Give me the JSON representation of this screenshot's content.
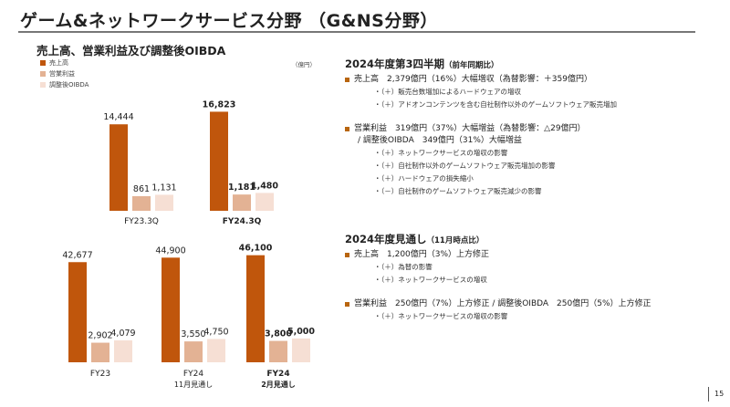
{
  "title": "ゲーム&ネットワークサービス分野 （G&NS分野）",
  "subtitle": "売上高、営業利益及び調整後OIBDA",
  "unit": "（億円）",
  "legend": [
    "売上高",
    "営業利益",
    "調整後OIBDA"
  ],
  "colors": {
    "sales": "#c0560c",
    "operating_income": "#e3b294",
    "oibda": "#f6dfd4",
    "bullet": "#b8650f"
  },
  "chart_data": [
    {
      "type": "bar",
      "categories": [
        "FY23.3Q",
        "FY24.3Q"
      ],
      "category_bold": [
        false,
        true
      ],
      "series": [
        {
          "name": "売上高",
          "values": [
            14444,
            16823
          ],
          "labels": [
            "14,444",
            "16,823"
          ]
        },
        {
          "name": "営業利益",
          "values": [
            861,
            1181
          ],
          "labels": [
            "861",
            "1,181"
          ]
        },
        {
          "name": "調整後OIBDA",
          "values": [
            1131,
            1480
          ],
          "labels": [
            "1,131",
            "1,480"
          ]
        }
      ]
    },
    {
      "type": "bar",
      "categories": [
        "FY23",
        "FY24\n11月見通し",
        "FY24\n2月見通し"
      ],
      "category_lines": [
        [
          "FY23"
        ],
        [
          "FY24",
          "11月見通し"
        ],
        [
          "FY24",
          "2月見通し"
        ]
      ],
      "category_bold": [
        false,
        false,
        true
      ],
      "series": [
        {
          "name": "売上高",
          "values": [
            42677,
            44900,
            46100
          ],
          "labels": [
            "42,677",
            "44,900",
            "46,100"
          ]
        },
        {
          "name": "営業利益",
          "values": [
            2902,
            3550,
            3800
          ],
          "labels": [
            "2,902",
            "3,550",
            "3,800"
          ]
        },
        {
          "name": "調整後OIBDA",
          "values": [
            4079,
            4750,
            5000
          ],
          "labels": [
            "4,079",
            "4,750",
            "5,000"
          ]
        }
      ]
    }
  ],
  "q3": {
    "heading": "2024年度第3四半期",
    "heading_note": "（前年同期比）",
    "sales": "売上高　2,379億円（16%）大幅増収（為替影響：＋359億円）",
    "sales_items": [
      "・（＋）販売台数増加によるハードウェアの増収",
      "・（＋）アドオンコンテンツを含む自社制作以外のゲームソフトウェア販売増加"
    ],
    "oi": "営業利益　319億円（37%）大幅増益（為替影響：△29億円）",
    "oi_line2": "/ 調整後OIBDA　349億円（31%）大幅増益",
    "oi_items": [
      "・（＋）ネットワークサービスの増収の影響",
      "・（＋）自社制作以外のゲームソフトウェア販売増加の影響",
      "・（＋）ハードウェアの損失縮小",
      "・（－）自社制作のゲームソフトウェア販売減少の影響"
    ]
  },
  "fy": {
    "heading": "2024年度見通し",
    "heading_note": "（11月時点比）",
    "sales": "売上高　1,200億円（3%）上方修正",
    "sales_items": [
      "・（＋）為替の影響",
      "・（＋）ネットワークサービスの増収"
    ],
    "oi": "営業利益　250億円（7%）上方修正 / 調整後OIBDA　250億円（5%）上方修正",
    "oi_items": [
      "・（＋）ネットワークサービスの増収の影響"
    ]
  },
  "page_number": "15"
}
